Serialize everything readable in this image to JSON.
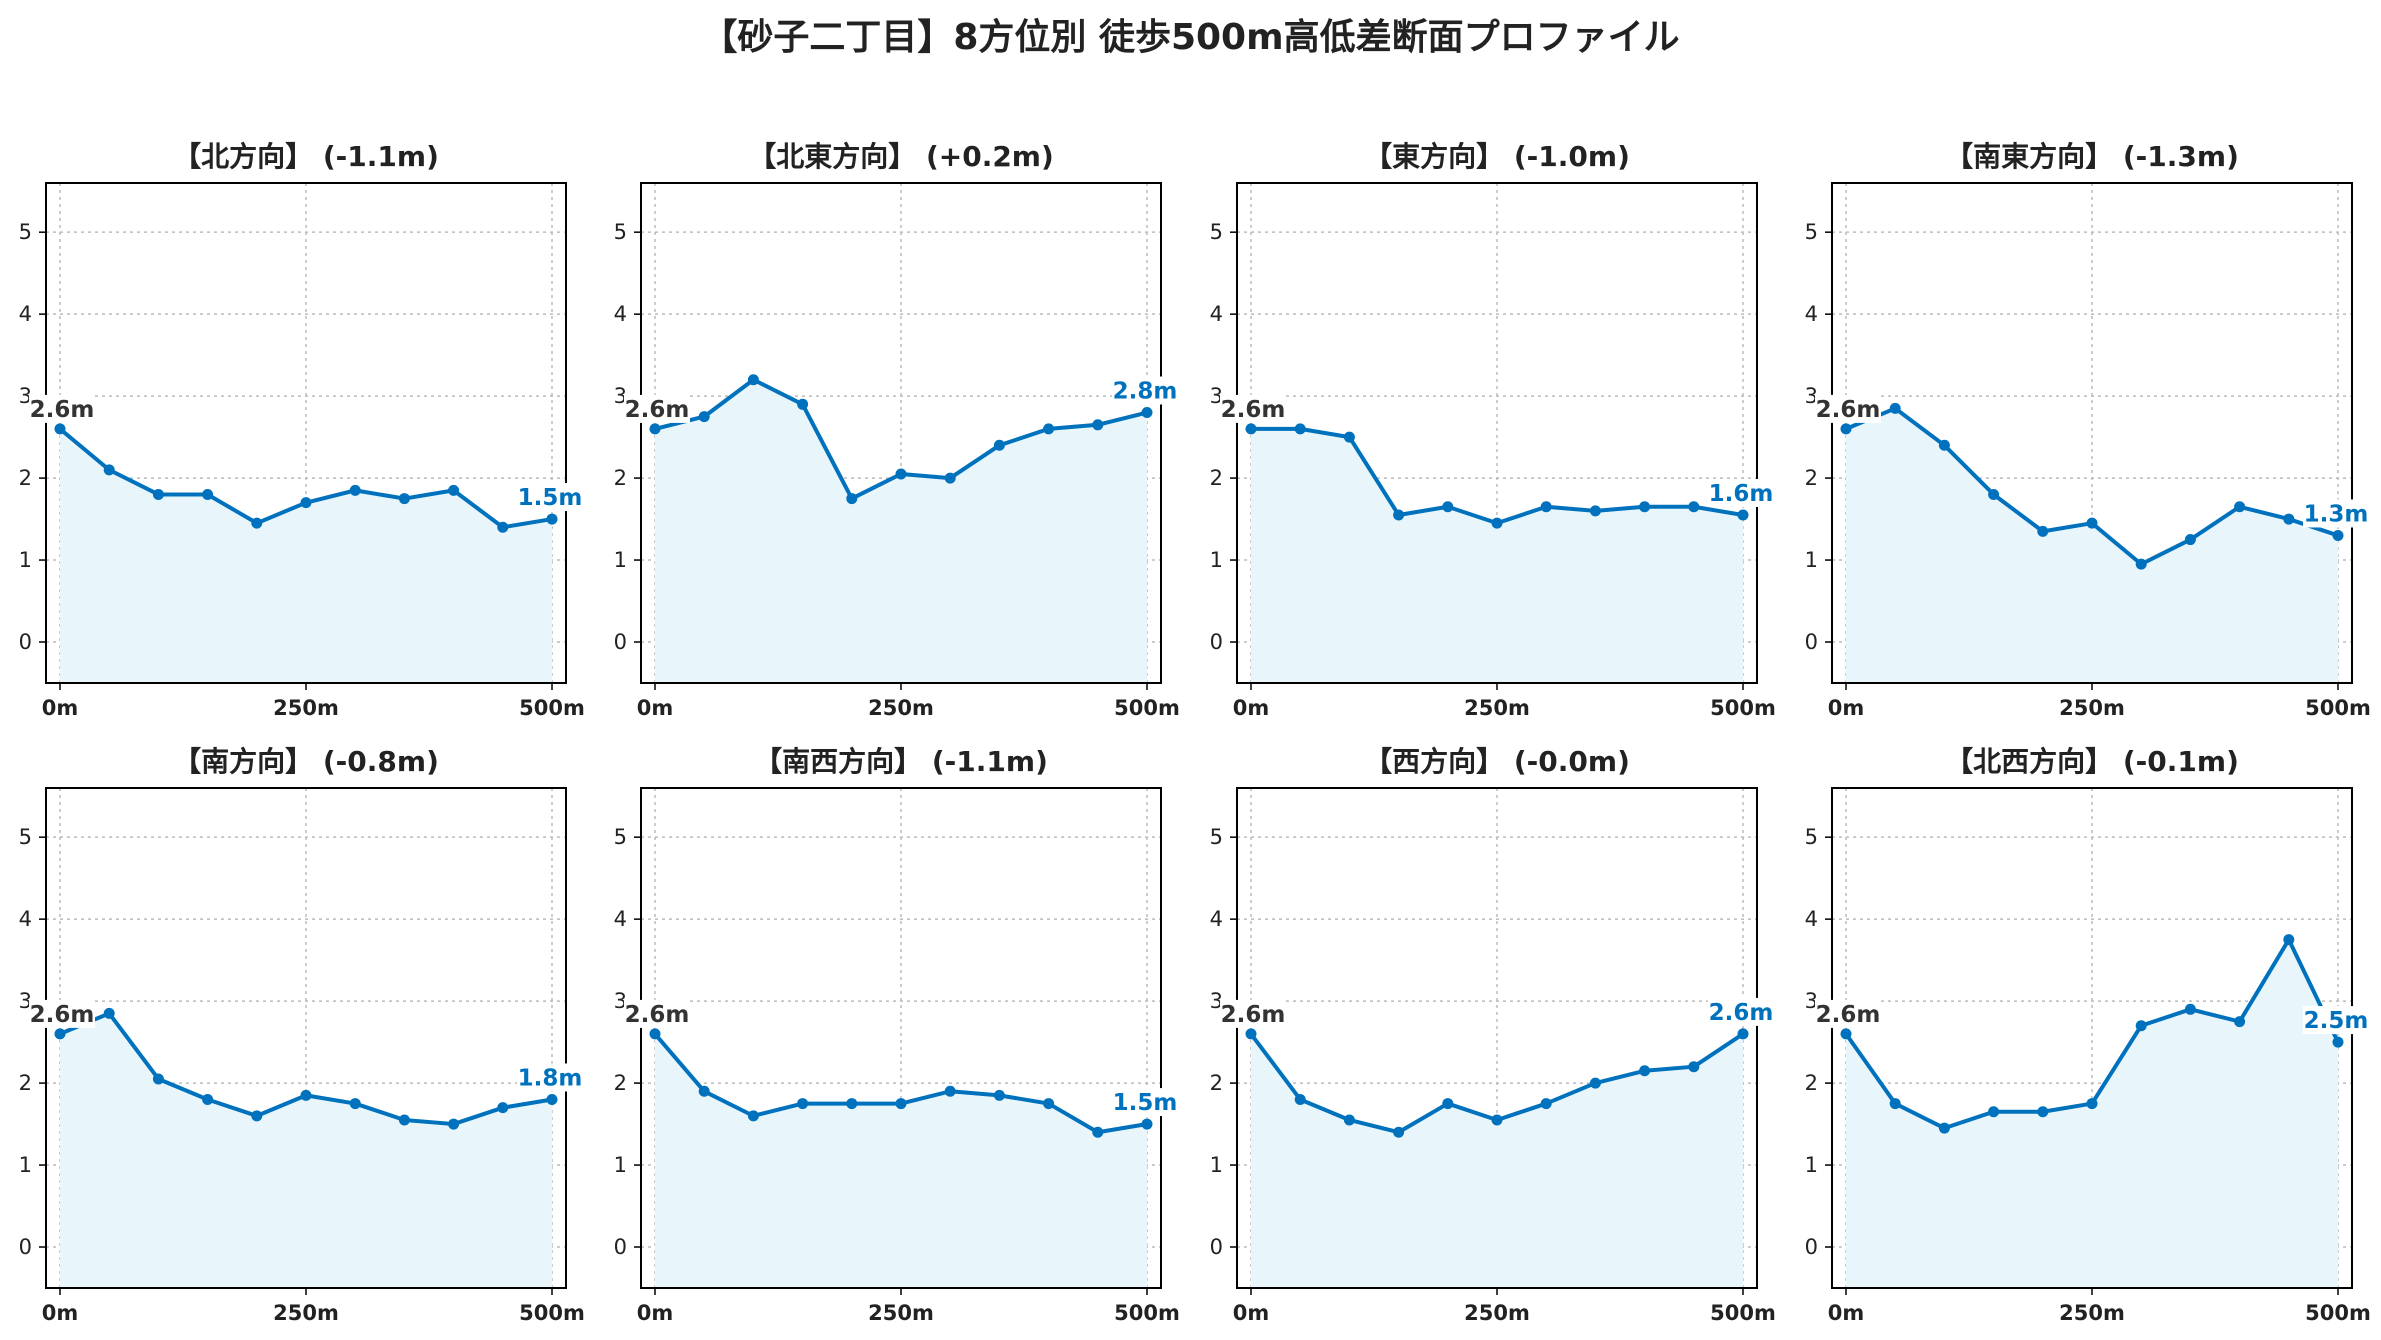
{
  "title": "【砂子二丁目】8方位別 徒歩500m高低差断面プロファイル",
  "colors": {
    "line": "#0072BD",
    "fill": "#E8F6FC",
    "grid": "#BBBBBB",
    "axis": "#000000",
    "start_label": "#333333"
  },
  "chart_data": [
    {
      "type": "area",
      "title": "【北方向】 (-1.1m)",
      "x": [
        0,
        50,
        100,
        150,
        200,
        250,
        300,
        350,
        400,
        450,
        500
      ],
      "values": [
        2.6,
        2.1,
        1.8,
        1.8,
        1.45,
        1.7,
        1.85,
        1.75,
        1.85,
        1.4,
        1.5
      ],
      "start_label": "2.6m",
      "end_label": "1.5m",
      "xticks": [
        0,
        250,
        500
      ],
      "xtick_labels": [
        "0m",
        "250m",
        "500m"
      ],
      "yticks": [
        0,
        1,
        2,
        3,
        4,
        5
      ],
      "ylim": [
        -0.5,
        5.6
      ],
      "grid": true
    },
    {
      "type": "area",
      "title": "【北東方向】 (+0.2m)",
      "x": [
        0,
        50,
        100,
        150,
        200,
        250,
        300,
        350,
        400,
        450,
        500
      ],
      "values": [
        2.6,
        2.75,
        3.2,
        2.9,
        1.75,
        2.05,
        2.0,
        2.4,
        2.6,
        2.65,
        2.8
      ],
      "start_label": "2.6m",
      "end_label": "2.8m",
      "xticks": [
        0,
        250,
        500
      ],
      "xtick_labels": [
        "0m",
        "250m",
        "500m"
      ],
      "yticks": [
        0,
        1,
        2,
        3,
        4,
        5
      ],
      "ylim": [
        -0.5,
        5.6
      ],
      "grid": true
    },
    {
      "type": "area",
      "title": "【東方向】 (-1.0m)",
      "x": [
        0,
        50,
        100,
        150,
        200,
        250,
        300,
        350,
        400,
        450,
        500
      ],
      "values": [
        2.6,
        2.6,
        2.5,
        1.55,
        1.65,
        1.45,
        1.65,
        1.6,
        1.65,
        1.65,
        1.55
      ],
      "start_label": "2.6m",
      "end_label": "1.6m",
      "xticks": [
        0,
        250,
        500
      ],
      "xtick_labels": [
        "0m",
        "250m",
        "500m"
      ],
      "yticks": [
        0,
        1,
        2,
        3,
        4,
        5
      ],
      "ylim": [
        -0.5,
        5.6
      ],
      "grid": true
    },
    {
      "type": "area",
      "title": "【南東方向】 (-1.3m)",
      "x": [
        0,
        50,
        100,
        150,
        200,
        250,
        300,
        350,
        400,
        450,
        500
      ],
      "values": [
        2.6,
        2.85,
        2.4,
        1.8,
        1.35,
        1.45,
        0.95,
        1.25,
        1.65,
        1.5,
        1.3
      ],
      "start_label": "2.6m",
      "end_label": "1.3m",
      "xticks": [
        0,
        250,
        500
      ],
      "xtick_labels": [
        "0m",
        "250m",
        "500m"
      ],
      "yticks": [
        0,
        1,
        2,
        3,
        4,
        5
      ],
      "ylim": [
        -0.5,
        5.6
      ],
      "grid": true
    },
    {
      "type": "area",
      "title": "【南方向】 (-0.8m)",
      "x": [
        0,
        50,
        100,
        150,
        200,
        250,
        300,
        350,
        400,
        450,
        500
      ],
      "values": [
        2.6,
        2.85,
        2.05,
        1.8,
        1.6,
        1.85,
        1.75,
        1.55,
        1.5,
        1.7,
        1.8
      ],
      "start_label": "2.6m",
      "end_label": "1.8m",
      "xticks": [
        0,
        250,
        500
      ],
      "xtick_labels": [
        "0m",
        "250m",
        "500m"
      ],
      "yticks": [
        0,
        1,
        2,
        3,
        4,
        5
      ],
      "ylim": [
        -0.5,
        5.6
      ],
      "grid": true
    },
    {
      "type": "area",
      "title": "【南西方向】 (-1.1m)",
      "x": [
        0,
        50,
        100,
        150,
        200,
        250,
        300,
        350,
        400,
        450,
        500
      ],
      "values": [
        2.6,
        1.9,
        1.6,
        1.75,
        1.75,
        1.75,
        1.9,
        1.85,
        1.75,
        1.4,
        1.5
      ],
      "start_label": "2.6m",
      "end_label": "1.5m",
      "xticks": [
        0,
        250,
        500
      ],
      "xtick_labels": [
        "0m",
        "250m",
        "500m"
      ],
      "yticks": [
        0,
        1,
        2,
        3,
        4,
        5
      ],
      "ylim": [
        -0.5,
        5.6
      ],
      "grid": true
    },
    {
      "type": "area",
      "title": "【西方向】 (-0.0m)",
      "x": [
        0,
        50,
        100,
        150,
        200,
        250,
        300,
        350,
        400,
        450,
        500
      ],
      "values": [
        2.6,
        1.8,
        1.55,
        1.4,
        1.75,
        1.55,
        1.75,
        2.0,
        2.15,
        2.2,
        2.6
      ],
      "start_label": "2.6m",
      "end_label": "2.6m",
      "xticks": [
        0,
        250,
        500
      ],
      "xtick_labels": [
        "0m",
        "250m",
        "500m"
      ],
      "yticks": [
        0,
        1,
        2,
        3,
        4,
        5
      ],
      "ylim": [
        -0.5,
        5.6
      ],
      "grid": true
    },
    {
      "type": "area",
      "title": "【北西方向】 (-0.1m)",
      "x": [
        0,
        50,
        100,
        150,
        200,
        250,
        300,
        350,
        400,
        450,
        500
      ],
      "values": [
        2.6,
        1.75,
        1.45,
        1.65,
        1.65,
        1.75,
        2.7,
        2.9,
        2.75,
        3.75,
        2.5
      ],
      "start_label": "2.6m",
      "end_label": "2.5m",
      "xticks": [
        0,
        250,
        500
      ],
      "xtick_labels": [
        "0m",
        "250m",
        "500m"
      ],
      "yticks": [
        0,
        1,
        2,
        3,
        4,
        5
      ],
      "ylim": [
        -0.5,
        5.6
      ],
      "grid": true
    }
  ]
}
